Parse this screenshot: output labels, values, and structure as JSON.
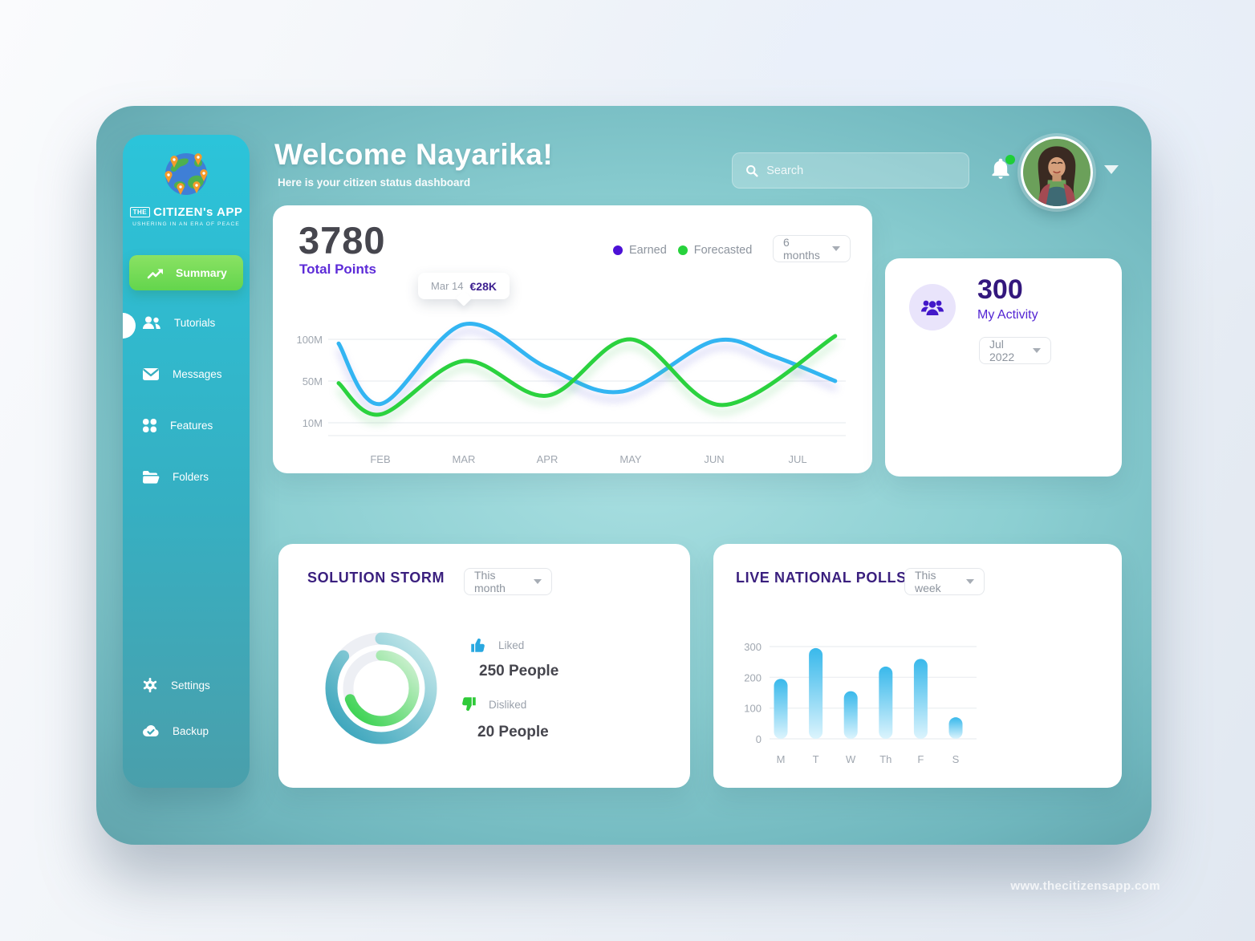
{
  "brand": {
    "badge": "THE",
    "name": "CITIZEN's APP",
    "tagline": "USHERING IN AN ERA OF PEACE"
  },
  "header": {
    "title": "Welcome Nayarika!",
    "subtitle": "Here is your citizen status dashboard",
    "search_placeholder": "Search"
  },
  "sidebar": {
    "items": [
      {
        "label": "Summary",
        "icon": "trending-up-icon",
        "active": true
      },
      {
        "label": "Tutorials",
        "icon": "people-icon",
        "active": false
      },
      {
        "label": "Messages",
        "icon": "envelope-icon",
        "active": false
      },
      {
        "label": "Features",
        "icon": "grid-icon",
        "active": false
      },
      {
        "label": "Folders",
        "icon": "folder-icon",
        "active": false
      }
    ],
    "footer_items": [
      {
        "label": "Settings",
        "icon": "gear-icon"
      },
      {
        "label": "Backup",
        "icon": "cloud-check-icon"
      }
    ]
  },
  "points_card": {
    "value": "3780",
    "label": "Total Points",
    "legend": [
      {
        "label": "Earned",
        "color": "#4c11d6"
      },
      {
        "label": "Forecasted",
        "color": "#27d23c"
      }
    ],
    "range": "6 months",
    "tooltip": {
      "date": "Mar 14",
      "value": "€28K"
    }
  },
  "activity_card": {
    "value": "300",
    "label": "My Activity",
    "range": "Jul 2022"
  },
  "solution_card": {
    "title": "SOLUTION STORM",
    "range": "This month",
    "liked": {
      "label": "Liked",
      "value": "250 People"
    },
    "disliked": {
      "label": "Disliked",
      "value": "20 People"
    }
  },
  "polls_card": {
    "title": "LIVE NATIONAL POLLS",
    "range": "This week"
  },
  "watermark": "www.thecitizensapp.com",
  "chart_data": [
    {
      "type": "line",
      "title": "Total Points – earned vs forecasted",
      "grid": true,
      "legend_position": "top-right",
      "categories": [
        "FEB",
        "MAR",
        "APR",
        "MAY",
        "JUN",
        "JUL"
      ],
      "ytick_labels": [
        "100M",
        "50M",
        "10M"
      ],
      "ytick_values": [
        100,
        50,
        10
      ],
      "series": [
        {
          "name": "Earned",
          "color": "#33b5f2",
          "points": [
            [
              0.5,
              95
            ],
            [
              1,
              28
            ],
            [
              2,
              118
            ],
            [
              3,
              66
            ],
            [
              3.9,
              40
            ],
            [
              5,
              98
            ],
            [
              5.7,
              80
            ],
            [
              6.45,
              50
            ]
          ]
        },
        {
          "name": "Forecasted",
          "color": "#2bd23f",
          "points": [
            [
              0.5,
              48
            ],
            [
              1,
              18
            ],
            [
              2,
              74
            ],
            [
              3,
              36
            ],
            [
              4,
              100
            ],
            [
              5.1,
              27
            ],
            [
              6.45,
              104
            ]
          ]
        }
      ],
      "annotation": {
        "series": "Earned",
        "at": "Mar 14",
        "label": "€28K",
        "month_index": 2
      }
    },
    {
      "type": "bar",
      "title": "Live national polls – this week",
      "grid": true,
      "categories": [
        "M",
        "T",
        "W",
        "Th",
        "F",
        "S"
      ],
      "values": [
        195,
        295,
        155,
        235,
        260,
        70
      ],
      "yticks": [
        0,
        100,
        200,
        300
      ],
      "ylim": [
        0,
        300
      ],
      "bar_color_top": "#2fb5ea",
      "bar_color_bottom": "#dcf4fd"
    },
    {
      "type": "pie",
      "subtype": "concentric-rings",
      "title": "Solution storm – liked vs disliked",
      "rings": [
        {
          "name": "Liked",
          "value": 250,
          "unit": "People",
          "sweep_deg": 310,
          "color": "#3aa9bf"
        },
        {
          "name": "Disliked",
          "value": 20,
          "unit": "People",
          "sweep_deg": 250,
          "color": "#31d047"
        }
      ]
    }
  ]
}
